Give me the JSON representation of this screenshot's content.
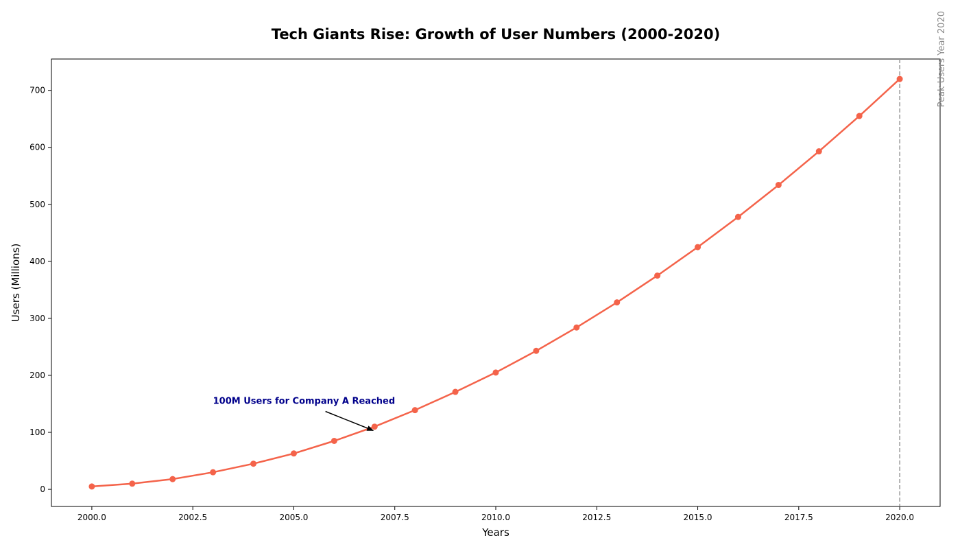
{
  "chart_data": {
    "type": "line",
    "title": "Tech Giants Rise: Growth of User Numbers (2000-2020)",
    "xlabel": "Years",
    "ylabel": "Users (Millions)",
    "xlim": [
      1999,
      2021
    ],
    "ylim": [
      -30,
      755
    ],
    "x_ticks": [
      2000.0,
      2002.5,
      2005.0,
      2007.5,
      2010.0,
      2012.5,
      2015.0,
      2017.5,
      2020.0
    ],
    "x_tick_labels": [
      "2000.0",
      "2002.5",
      "2005.0",
      "2007.5",
      "2010.0",
      "2012.5",
      "2015.0",
      "2017.5",
      "2020.0"
    ],
    "y_ticks": [
      0,
      100,
      200,
      300,
      400,
      500,
      600,
      700
    ],
    "y_tick_labels": [
      "0",
      "100",
      "200",
      "300",
      "400",
      "500",
      "600",
      "700"
    ],
    "grid": false,
    "series": [
      {
        "color": "#f4634a",
        "marker": "circle",
        "x": [
          2000,
          2001,
          2002,
          2003,
          2004,
          2005,
          2006,
          2007,
          2008,
          2009,
          2010,
          2011,
          2012,
          2013,
          2014,
          2015,
          2016,
          2017,
          2018,
          2019,
          2020
        ],
        "values": [
          5,
          10,
          18,
          30,
          45,
          63,
          85,
          110,
          139,
          171,
          205,
          243,
          284,
          328,
          375,
          425,
          478,
          534,
          593,
          655,
          720
        ]
      }
    ],
    "annotations": [
      {
        "text": "100M Users for Company A Reached",
        "color": "#00008b",
        "point": [
          2007,
          102
        ],
        "text_position": [
          2003,
          150
        ]
      }
    ],
    "vertical_lines": [
      {
        "x": 2020,
        "color": "#999999",
        "style": "dashed",
        "label": "Peak Users Year 2020"
      }
    ]
  }
}
